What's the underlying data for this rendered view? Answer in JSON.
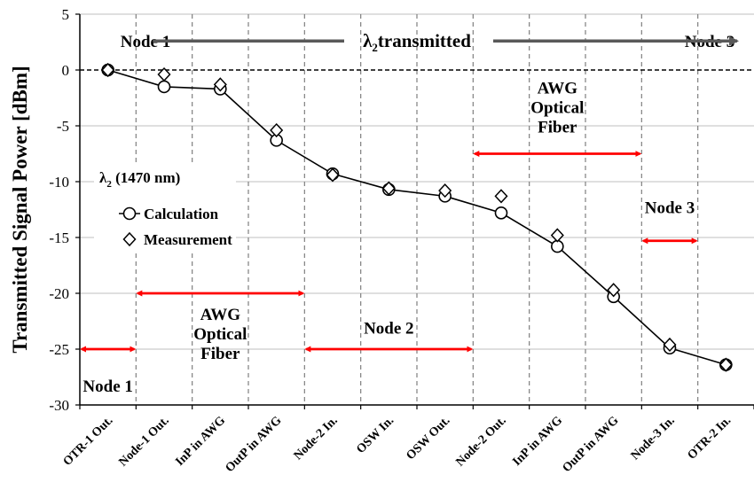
{
  "chart_data": {
    "type": "line",
    "title": "",
    "xlabel": "",
    "ylabel": "Transmitted Signal Power [dBm]",
    "ylim": [
      -30,
      5
    ],
    "yticks": [
      5,
      0,
      -5,
      -10,
      -15,
      -20,
      -25,
      -30
    ],
    "grid": true,
    "legend_position": "left, middle",
    "categories": [
      "OTR-1 Out.",
      "Node-1 Out.",
      "InP in AWG",
      "OutP in AWG",
      "Node-2 In.",
      "OSW In.",
      "OSW Out.",
      "Node-2 Out.",
      "InP in AWG",
      "OutP in AWG",
      "Node-3 In.",
      "OTR-2 In."
    ],
    "series": [
      {
        "name": "Calculation",
        "marker": "circle",
        "connected": true,
        "values": [
          0,
          -1.5,
          -1.7,
          -6.3,
          -9.3,
          -10.7,
          -11.3,
          -12.8,
          -15.8,
          -20.3,
          -24.9,
          -26.4
        ]
      },
      {
        "name": "Measurement",
        "marker": "diamond",
        "connected": false,
        "values": [
          0,
          -0.4,
          -1.3,
          -5.4,
          -9.4,
          -10.6,
          -10.8,
          -11.3,
          -14.8,
          -19.7,
          -24.6,
          -26.4
        ]
      }
    ],
    "legend_title": "(1470 nm)",
    "legend_symbol": "λ",
    "legend_subscript": "2",
    "annotations": {
      "top_arrow": {
        "left": "Node 1",
        "center": "transmitted",
        "symbol": "λ",
        "subscript": "2",
        "right": "Node 3",
        "from_category": 1.3,
        "to_category": 11.7
      },
      "spans": [
        {
          "label_lines": [
            "Node 1"
          ],
          "from": 0,
          "to": 1,
          "y": -25,
          "label_y": -28.8
        },
        {
          "label_lines": [
            "AWG",
            "Optical",
            "Fiber"
          ],
          "from": 1,
          "to": 4,
          "y": -20,
          "label_y": -22.4
        },
        {
          "label_lines": [
            "Node 2"
          ],
          "from": 4,
          "to": 7,
          "y": -25,
          "label_y": -23.6
        },
        {
          "label_lines": [
            "AWG",
            "Optical",
            "Fiber"
          ],
          "from": 7,
          "to": 10,
          "y": -7.5,
          "label_y": -2.1
        },
        {
          "label_lines": [
            "Node 3"
          ],
          "from": 10,
          "to": 11,
          "y": -15.3,
          "label_y": -12.8
        }
      ]
    },
    "colors": {
      "axis": "#000000",
      "grid": "#bfbfbf",
      "line": "#000000",
      "accent_arrow": "#ff0000",
      "top_arrow": "#595959",
      "vertical_divider": "#7f7f7f"
    }
  }
}
